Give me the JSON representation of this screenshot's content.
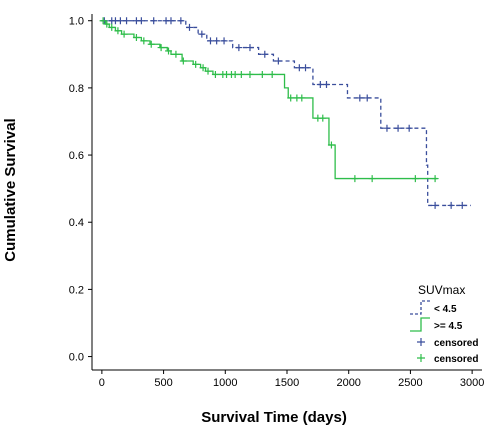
{
  "chart_data": {
    "type": "line",
    "title": "",
    "xlabel": "Survival Time (days)",
    "ylabel": "Cumulative Survival",
    "xlim": [
      -80,
      3080
    ],
    "ylim": [
      -0.04,
      1.02
    ],
    "x_ticks": [
      0,
      500,
      1000,
      1500,
      2000,
      2500,
      3000
    ],
    "y_ticks": [
      0.0,
      0.2,
      0.4,
      0.6,
      0.8,
      1.0
    ],
    "y_tick_labels": [
      "0.0",
      "0.2",
      "0.4",
      "0.6",
      "0.8",
      "1.0"
    ],
    "grid": false,
    "legend": {
      "title": "SUVmax",
      "position": "bottom-right",
      "entries": [
        "< 4.5",
        ">= 4.5",
        "censored",
        "censored"
      ]
    },
    "colors": {
      "low": "#3a4e9c",
      "high": "#2ebd4a",
      "axis": "#000000"
    },
    "series": [
      {
        "name": "< 4.5",
        "dashed": true,
        "steps": [
          [
            0,
            1.0
          ],
          [
            680,
            0.98
          ],
          [
            780,
            0.96
          ],
          [
            850,
            0.94
          ],
          [
            1060,
            0.92
          ],
          [
            1270,
            0.9
          ],
          [
            1390,
            0.88
          ],
          [
            1560,
            0.86
          ],
          [
            1710,
            0.81
          ],
          [
            1990,
            0.77
          ],
          [
            2260,
            0.68
          ],
          [
            2630,
            0.57
          ],
          [
            2640,
            0.45
          ],
          [
            2990,
            0.45
          ]
        ],
        "censored": [
          [
            20,
            1.0
          ],
          [
            80,
            1.0
          ],
          [
            110,
            1.0
          ],
          [
            150,
            1.0
          ],
          [
            200,
            1.0
          ],
          [
            280,
            1.0
          ],
          [
            320,
            1.0
          ],
          [
            420,
            1.0
          ],
          [
            520,
            1.0
          ],
          [
            560,
            1.0
          ],
          [
            640,
            1.0
          ],
          [
            710,
            0.98
          ],
          [
            810,
            0.96
          ],
          [
            880,
            0.94
          ],
          [
            930,
            0.94
          ],
          [
            990,
            0.94
          ],
          [
            1110,
            0.92
          ],
          [
            1200,
            0.92
          ],
          [
            1320,
            0.9
          ],
          [
            1430,
            0.88
          ],
          [
            1600,
            0.86
          ],
          [
            1650,
            0.86
          ],
          [
            1770,
            0.81
          ],
          [
            1820,
            0.81
          ],
          [
            2090,
            0.77
          ],
          [
            2150,
            0.77
          ],
          [
            2310,
            0.68
          ],
          [
            2400,
            0.68
          ],
          [
            2490,
            0.68
          ],
          [
            2700,
            0.45
          ],
          [
            2830,
            0.45
          ],
          [
            2920,
            0.45
          ]
        ]
      },
      {
        "name": ">= 4.5",
        "dashed": false,
        "steps": [
          [
            0,
            1.0
          ],
          [
            30,
            0.99
          ],
          [
            60,
            0.98
          ],
          [
            110,
            0.97
          ],
          [
            160,
            0.96
          ],
          [
            260,
            0.95
          ],
          [
            320,
            0.94
          ],
          [
            390,
            0.93
          ],
          [
            470,
            0.92
          ],
          [
            530,
            0.91
          ],
          [
            560,
            0.9
          ],
          [
            650,
            0.88
          ],
          [
            740,
            0.87
          ],
          [
            800,
            0.86
          ],
          [
            840,
            0.85
          ],
          [
            900,
            0.84
          ],
          [
            1480,
            0.8
          ],
          [
            1510,
            0.77
          ],
          [
            1710,
            0.71
          ],
          [
            1840,
            0.63
          ],
          [
            1890,
            0.53
          ],
          [
            2720,
            0.53
          ]
        ],
        "censored": [
          [
            10,
            1.0
          ],
          [
            40,
            0.99
          ],
          [
            80,
            0.98
          ],
          [
            130,
            0.97
          ],
          [
            180,
            0.96
          ],
          [
            280,
            0.95
          ],
          [
            340,
            0.94
          ],
          [
            400,
            0.93
          ],
          [
            480,
            0.92
          ],
          [
            540,
            0.91
          ],
          [
            600,
            0.9
          ],
          [
            660,
            0.88
          ],
          [
            760,
            0.87
          ],
          [
            820,
            0.86
          ],
          [
            860,
            0.85
          ],
          [
            920,
            0.84
          ],
          [
            980,
            0.84
          ],
          [
            1010,
            0.84
          ],
          [
            1050,
            0.84
          ],
          [
            1080,
            0.84
          ],
          [
            1130,
            0.84
          ],
          [
            1200,
            0.84
          ],
          [
            1300,
            0.84
          ],
          [
            1380,
            0.84
          ],
          [
            1530,
            0.77
          ],
          [
            1580,
            0.77
          ],
          [
            1620,
            0.77
          ],
          [
            1750,
            0.71
          ],
          [
            1790,
            0.71
          ],
          [
            1860,
            0.63
          ],
          [
            2050,
            0.53
          ],
          [
            2190,
            0.53
          ],
          [
            2540,
            0.53
          ],
          [
            2700,
            0.53
          ]
        ]
      }
    ]
  }
}
